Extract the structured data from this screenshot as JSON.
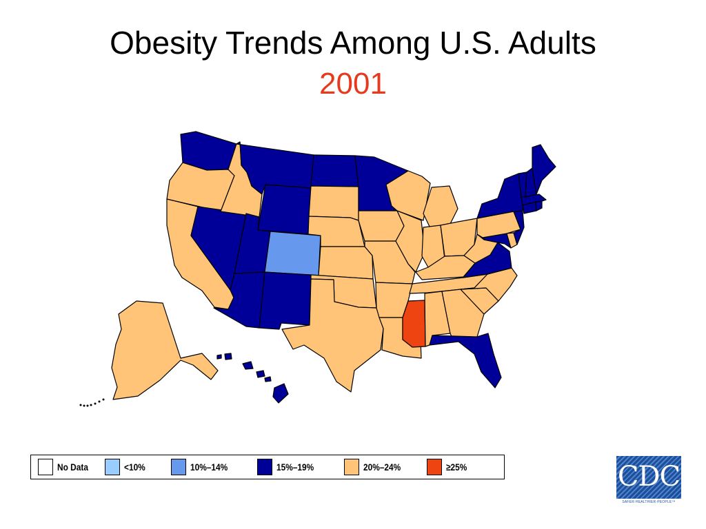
{
  "header": {
    "title": "Obesity Trends Among U.S. Adults",
    "year": "2001"
  },
  "colors": {
    "title": "#000000",
    "year": "#e63a1e",
    "no_data": "#ffffff",
    "lt10": "#99ccff",
    "p10_14": "#6699ee",
    "p15_19": "#000099",
    "p20_24": "#ffc477",
    "ge25": "#ee4411"
  },
  "legend": {
    "items": [
      {
        "label": "No Data",
        "category": "no_data"
      },
      {
        "label": "<10%",
        "category": "lt10"
      },
      {
        "label": "10%–14%",
        "category": "p10_14"
      },
      {
        "label": "15%–19%",
        "category": "p15_19"
      },
      {
        "label": "20%–24%",
        "category": "p20_24"
      },
      {
        "label": "≥25%",
        "category": "ge25"
      }
    ]
  },
  "states": {
    "WA": "p15_19",
    "OR": "p20_24",
    "CA": "p20_24",
    "NV": "p15_19",
    "ID": "p20_24",
    "MT": "p15_19",
    "WY": "p15_19",
    "UT": "p15_19",
    "AZ": "p15_19",
    "CO": "p10_14",
    "NM": "p15_19",
    "ND": "p15_19",
    "SD": "p20_24",
    "NE": "p20_24",
    "KS": "p20_24",
    "OK": "p20_24",
    "TX": "p20_24",
    "MN": "p15_19",
    "IA": "p20_24",
    "MO": "p20_24",
    "AR": "p20_24",
    "LA": "p20_24",
    "WI": "p20_24",
    "IL": "p20_24",
    "MS": "ge25",
    "MI": "p20_24",
    "IN": "p20_24",
    "OH": "p20_24",
    "KY": "p20_24",
    "TN": "p20_24",
    "AL": "p20_24",
    "GA": "p20_24",
    "FL": "p15_19",
    "SC": "p20_24",
    "NC": "p20_24",
    "VA": "p15_19",
    "WV": "p20_24",
    "MD": "p15_19",
    "DE": "p20_24",
    "PA": "p20_24",
    "NJ": "p15_19",
    "NY": "p15_19",
    "CT": "p15_19",
    "RI": "p15_19",
    "MA": "p15_19",
    "VT": "p15_19",
    "NH": "p15_19",
    "ME": "p15_19",
    "AK": "p20_24",
    "HI": "p15_19"
  },
  "logo": {
    "text": "CDC",
    "tagline": "SAFER·HEALTHIER·PEOPLE™"
  }
}
